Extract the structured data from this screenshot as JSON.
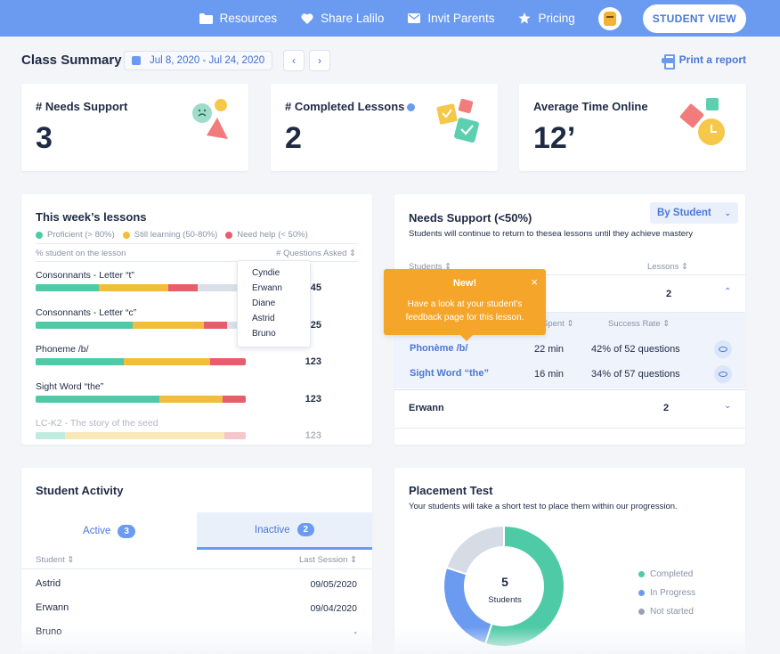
{
  "nav": {
    "links": [
      {
        "label": "Resources",
        "icon": "folder-icon"
      },
      {
        "label": "Share Lalilo",
        "icon": "heart-icon"
      },
      {
        "label": "Invit Parents",
        "icon": "mail-icon"
      },
      {
        "label": "Pricing",
        "icon": "star-icon"
      }
    ],
    "student_view": "STUDENT VIEW"
  },
  "header": {
    "title": "Class Summary",
    "date_range": "Jul 8, 2020 - Jul 24, 2020",
    "prev": "‹",
    "next": "›",
    "print": "Print a report"
  },
  "kpis": [
    {
      "label": "# Needs Support",
      "value": "3"
    },
    {
      "label": "# Completed Lessons",
      "value": "2"
    },
    {
      "label": "Average Time Online",
      "value": "12’"
    }
  ],
  "lessons": {
    "title": "This week’s lessons",
    "legend": [
      {
        "label": "Proficient (> 80%)",
        "color": "#4ecba6"
      },
      {
        "label": "Still learning (50-80%)",
        "color": "#f2be3a"
      },
      {
        "label": "Need help (< 50%)",
        "color": "#e85d6c"
      }
    ],
    "col_left": "% student on the lesson",
    "col_right": "# Questions Asked ⇕",
    "rows": [
      {
        "name": "Consonnants - Letter “t”",
        "count": "45",
        "proficient": 0.3,
        "learning": 0.33,
        "help": 0.14,
        "none": 0.23
      },
      {
        "name": "Consonnants - Letter “c”",
        "count": "25",
        "proficient": 0.46,
        "learning": 0.34,
        "help": 0.11,
        "none": 0.09
      },
      {
        "name": "Phoneme /b/",
        "count": "123",
        "proficient": 0.42,
        "learning": 0.41,
        "help": 0.17,
        "none": 0
      },
      {
        "name": "Sight Word “the”",
        "count": "123",
        "proficient": 0.59,
        "learning": 0.3,
        "help": 0.11,
        "none": 0
      },
      {
        "name": "LC-K2 - The story of the seed",
        "count": "123",
        "proficient": 0.14,
        "learning": 0.76,
        "help": 0.1,
        "none": 0
      }
    ],
    "dropdown": [
      "Cyndie",
      "Erwann",
      "Diane",
      "Astrid",
      "Bruno"
    ]
  },
  "needs_support": {
    "title": "Needs Support (<50%)",
    "subtitle": "Students will continue to return to thesea lessons until they achieve mastery",
    "filter": "By Student",
    "col_students": "Students ⇕",
    "col_lessons": "Lessons ⇕",
    "first_row_count": "2",
    "sub_col_spent": "Spent ⇕",
    "sub_col_rate": "Success Rate ⇕",
    "items": [
      {
        "lesson": "Phonème /b/",
        "time": "22 min",
        "rate": "42% of 52 questions"
      },
      {
        "lesson": "Sight Word “the”",
        "time": "16 min",
        "rate": "34% of 57 questions"
      }
    ],
    "second_row_name": "Erwann",
    "second_row_count": "2"
  },
  "tooltip": {
    "title": "New!",
    "body": "Have a look at your student's feedback page for this lesson.",
    "close": "×"
  },
  "activity": {
    "title": "Student Activity",
    "tab_active": "Active",
    "tab_active_count": "3",
    "tab_inactive": "Inactive",
    "tab_inactive_count": "2",
    "col_student": "Student ⇕",
    "col_session": "Last Session ⇕",
    "rows": [
      {
        "name": "Astrid",
        "date": "09/05/2020"
      },
      {
        "name": "Erwann",
        "date": "09/04/2020"
      },
      {
        "name": "Bruno",
        "date": "-"
      }
    ]
  },
  "placement": {
    "title": "Placement Test",
    "subtitle": "Your students will take a short test to place them within our progression.",
    "center_value": "5",
    "center_label": "Students",
    "segments": [
      {
        "label": "Completed",
        "value": 0.55,
        "color": "#4ecba6"
      },
      {
        "label": "In Progress",
        "value": 0.25,
        "color": "#6b9bf1"
      },
      {
        "label": "Not started",
        "value": 0.2,
        "color": "#d5dce6"
      }
    ]
  },
  "colors": {
    "proficient": "#4ecba6",
    "learning": "#f2be3a",
    "help": "#e85d6c",
    "none": "#d9e0ea",
    "accent": "#6b9bf1"
  }
}
